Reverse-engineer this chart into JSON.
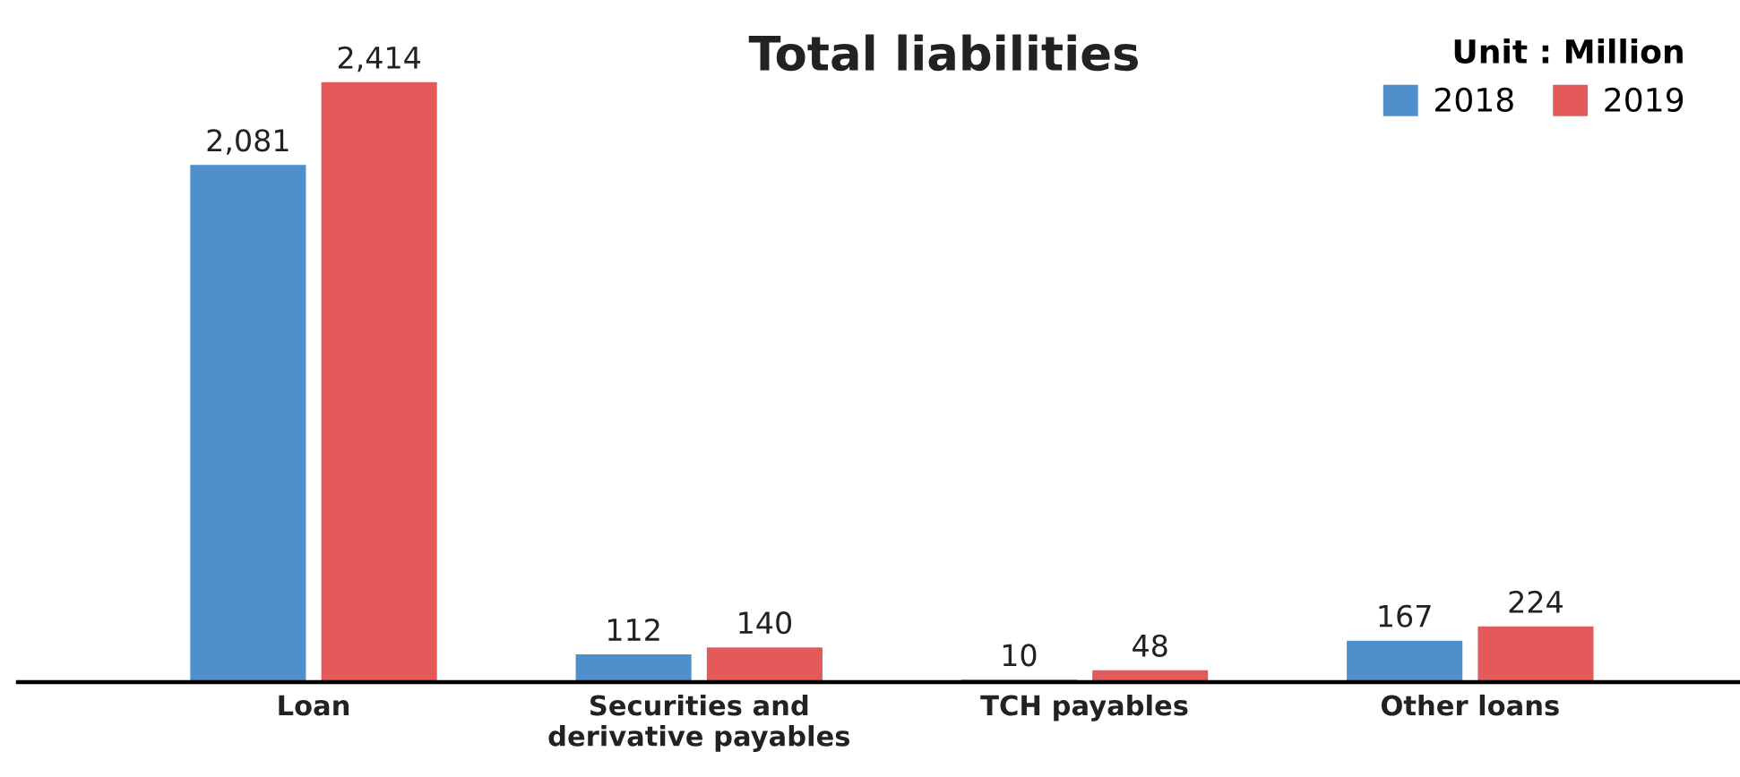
{
  "chart_data": {
    "type": "bar",
    "title": "Total liabilities",
    "legend_title": "Unit : Million",
    "categories": [
      "Loan",
      "Securities and\nderivative payables",
      "TCH payables",
      "Other loans"
    ],
    "series": [
      {
        "name": "2018",
        "color": "#4f8fcc",
        "values": [
          2081,
          112,
          10,
          167
        ],
        "value_labels": [
          "2,081",
          "112",
          "10",
          "167"
        ]
      },
      {
        "name": "2019",
        "color": "#e45a5b",
        "values": [
          2414,
          140,
          48,
          224
        ],
        "value_labels": [
          "2,414",
          "140",
          "48",
          "224"
        ]
      }
    ],
    "legend": "top right",
    "grid": false
  }
}
